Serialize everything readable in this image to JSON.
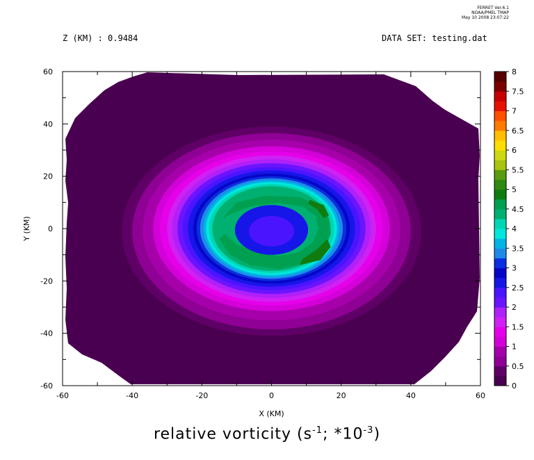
{
  "credits": {
    "line1": "FERRET  Ver.6.1",
    "line2": "NOAA/PMEL TMAP",
    "line3": "May 10 2008 23:07:22"
  },
  "header": {
    "z_label": "Z (KM) : 0.9484",
    "dataset_label": "DATA SET: testing.dat"
  },
  "bottom_title": {
    "text": "relative vorticity (s",
    "exp1": "-1",
    "mid": "; *10",
    "exp2": "-3",
    "end": ")"
  },
  "chart_data": {
    "type": "heatmap",
    "title": "",
    "xlabel": "X (KM)",
    "ylabel": "Y (KM)",
    "xlim": [
      -60,
      60
    ],
    "ylim": [
      -60,
      60
    ],
    "x_ticks": [
      "-60",
      "-40",
      "-20",
      "0",
      "20",
      "40",
      "60"
    ],
    "y_ticks": [
      "60",
      "40",
      "20",
      "0",
      "-20",
      "-40",
      "-60"
    ],
    "x_tick_values": [
      -60,
      -40,
      -20,
      0,
      20,
      40,
      60
    ],
    "y_tick_values": [
      60,
      40,
      20,
      0,
      -20,
      -40,
      -60
    ],
    "legend_placement": "right",
    "levels": [
      0,
      0.25,
      0.5,
      0.75,
      1,
      1.25,
      1.5,
      1.75,
      2,
      2.25,
      2.5,
      2.75,
      3,
      3.25,
      3.5,
      3.75,
      4,
      4.25,
      4.5,
      4.75,
      5,
      5.25,
      5.5,
      5.75,
      6,
      6.25,
      6.5,
      6.75,
      7,
      7.25,
      7.5,
      7.75,
      8
    ],
    "colorbar_labels": [
      "0",
      "0.5",
      "1",
      "1.5",
      "2",
      "2.5",
      "3",
      "3.5",
      "4",
      "4.5",
      "5",
      "5.5",
      "6",
      "6.5",
      "7",
      "7.5",
      "8"
    ],
    "colorbar_label_values": [
      0,
      0.5,
      1,
      1.5,
      2,
      2.5,
      3,
      3.5,
      4,
      4.5,
      5,
      5.5,
      6,
      6.5,
      7,
      7.5,
      8
    ],
    "colors": [
      "#4a0050",
      "#5f0066",
      "#77007d",
      "#8f0094",
      "#a600ab",
      "#be00c2",
      "#d400d9",
      "#e600ea",
      "#ee22f0",
      "#d020f4",
      "#b020f8",
      "#8e1cfc",
      "#6a14ff",
      "#4a14ff",
      "#2a1aff",
      "#1616e8",
      "#0606c8",
      "#0a2ee0",
      "#1462e8",
      "#1e8ae8",
      "#00b4e6",
      "#00d2e6",
      "#00e8dc",
      "#00d6b4",
      "#00c696",
      "#00b070",
      "#00a050",
      "#008c30",
      "#107c10",
      "#2e8a10",
      "#5a9c10",
      "#84b010",
      "#a8c410",
      "#ccd810",
      "#eaea00",
      "#ffdd00",
      "#ffbe00",
      "#ffa000",
      "#ff7a00",
      "#ff5000",
      "#ff2800",
      "#e81000",
      "#c80000",
      "#a00000",
      "#7a0000",
      "#560000"
    ],
    "region_levels": [
      {
        "name": "outer-0",
        "value": 0.1
      },
      {
        "name": "ring-0.25",
        "value": 0.35
      },
      {
        "name": "ring-0.5",
        "value": 0.6
      },
      {
        "name": "ring-0.75",
        "value": 0.85
      },
      {
        "name": "ring-1",
        "value": 1.1
      },
      {
        "name": "ring-1.25",
        "value": 1.35
      },
      {
        "name": "ring-1.5",
        "value": 1.6
      },
      {
        "name": "ring-1.75",
        "value": 1.85
      },
      {
        "name": "ring-2",
        "value": 2.1
      },
      {
        "name": "ring-2.25",
        "value": 2.35
      },
      {
        "name": "ring-2.5",
        "value": 2.6
      },
      {
        "name": "ring-2.75",
        "value": 2.85
      },
      {
        "name": "ring-3",
        "value": 3.1
      },
      {
        "name": "ring-3.25",
        "value": 3.35
      },
      {
        "name": "ring-3.5",
        "value": 3.6
      },
      {
        "name": "ring-3.75",
        "value": 3.85
      },
      {
        "name": "ring-4",
        "value": 4.1
      },
      {
        "name": "ring-4.25",
        "value": 4.35
      },
      {
        "name": "spiral-4.5",
        "value": 4.6
      },
      {
        "name": "spiral-4.75",
        "value": 4.85
      },
      {
        "name": "core-2.5",
        "value": 2.6
      },
      {
        "name": "core-2.25",
        "value": 2.35
      }
    ]
  }
}
